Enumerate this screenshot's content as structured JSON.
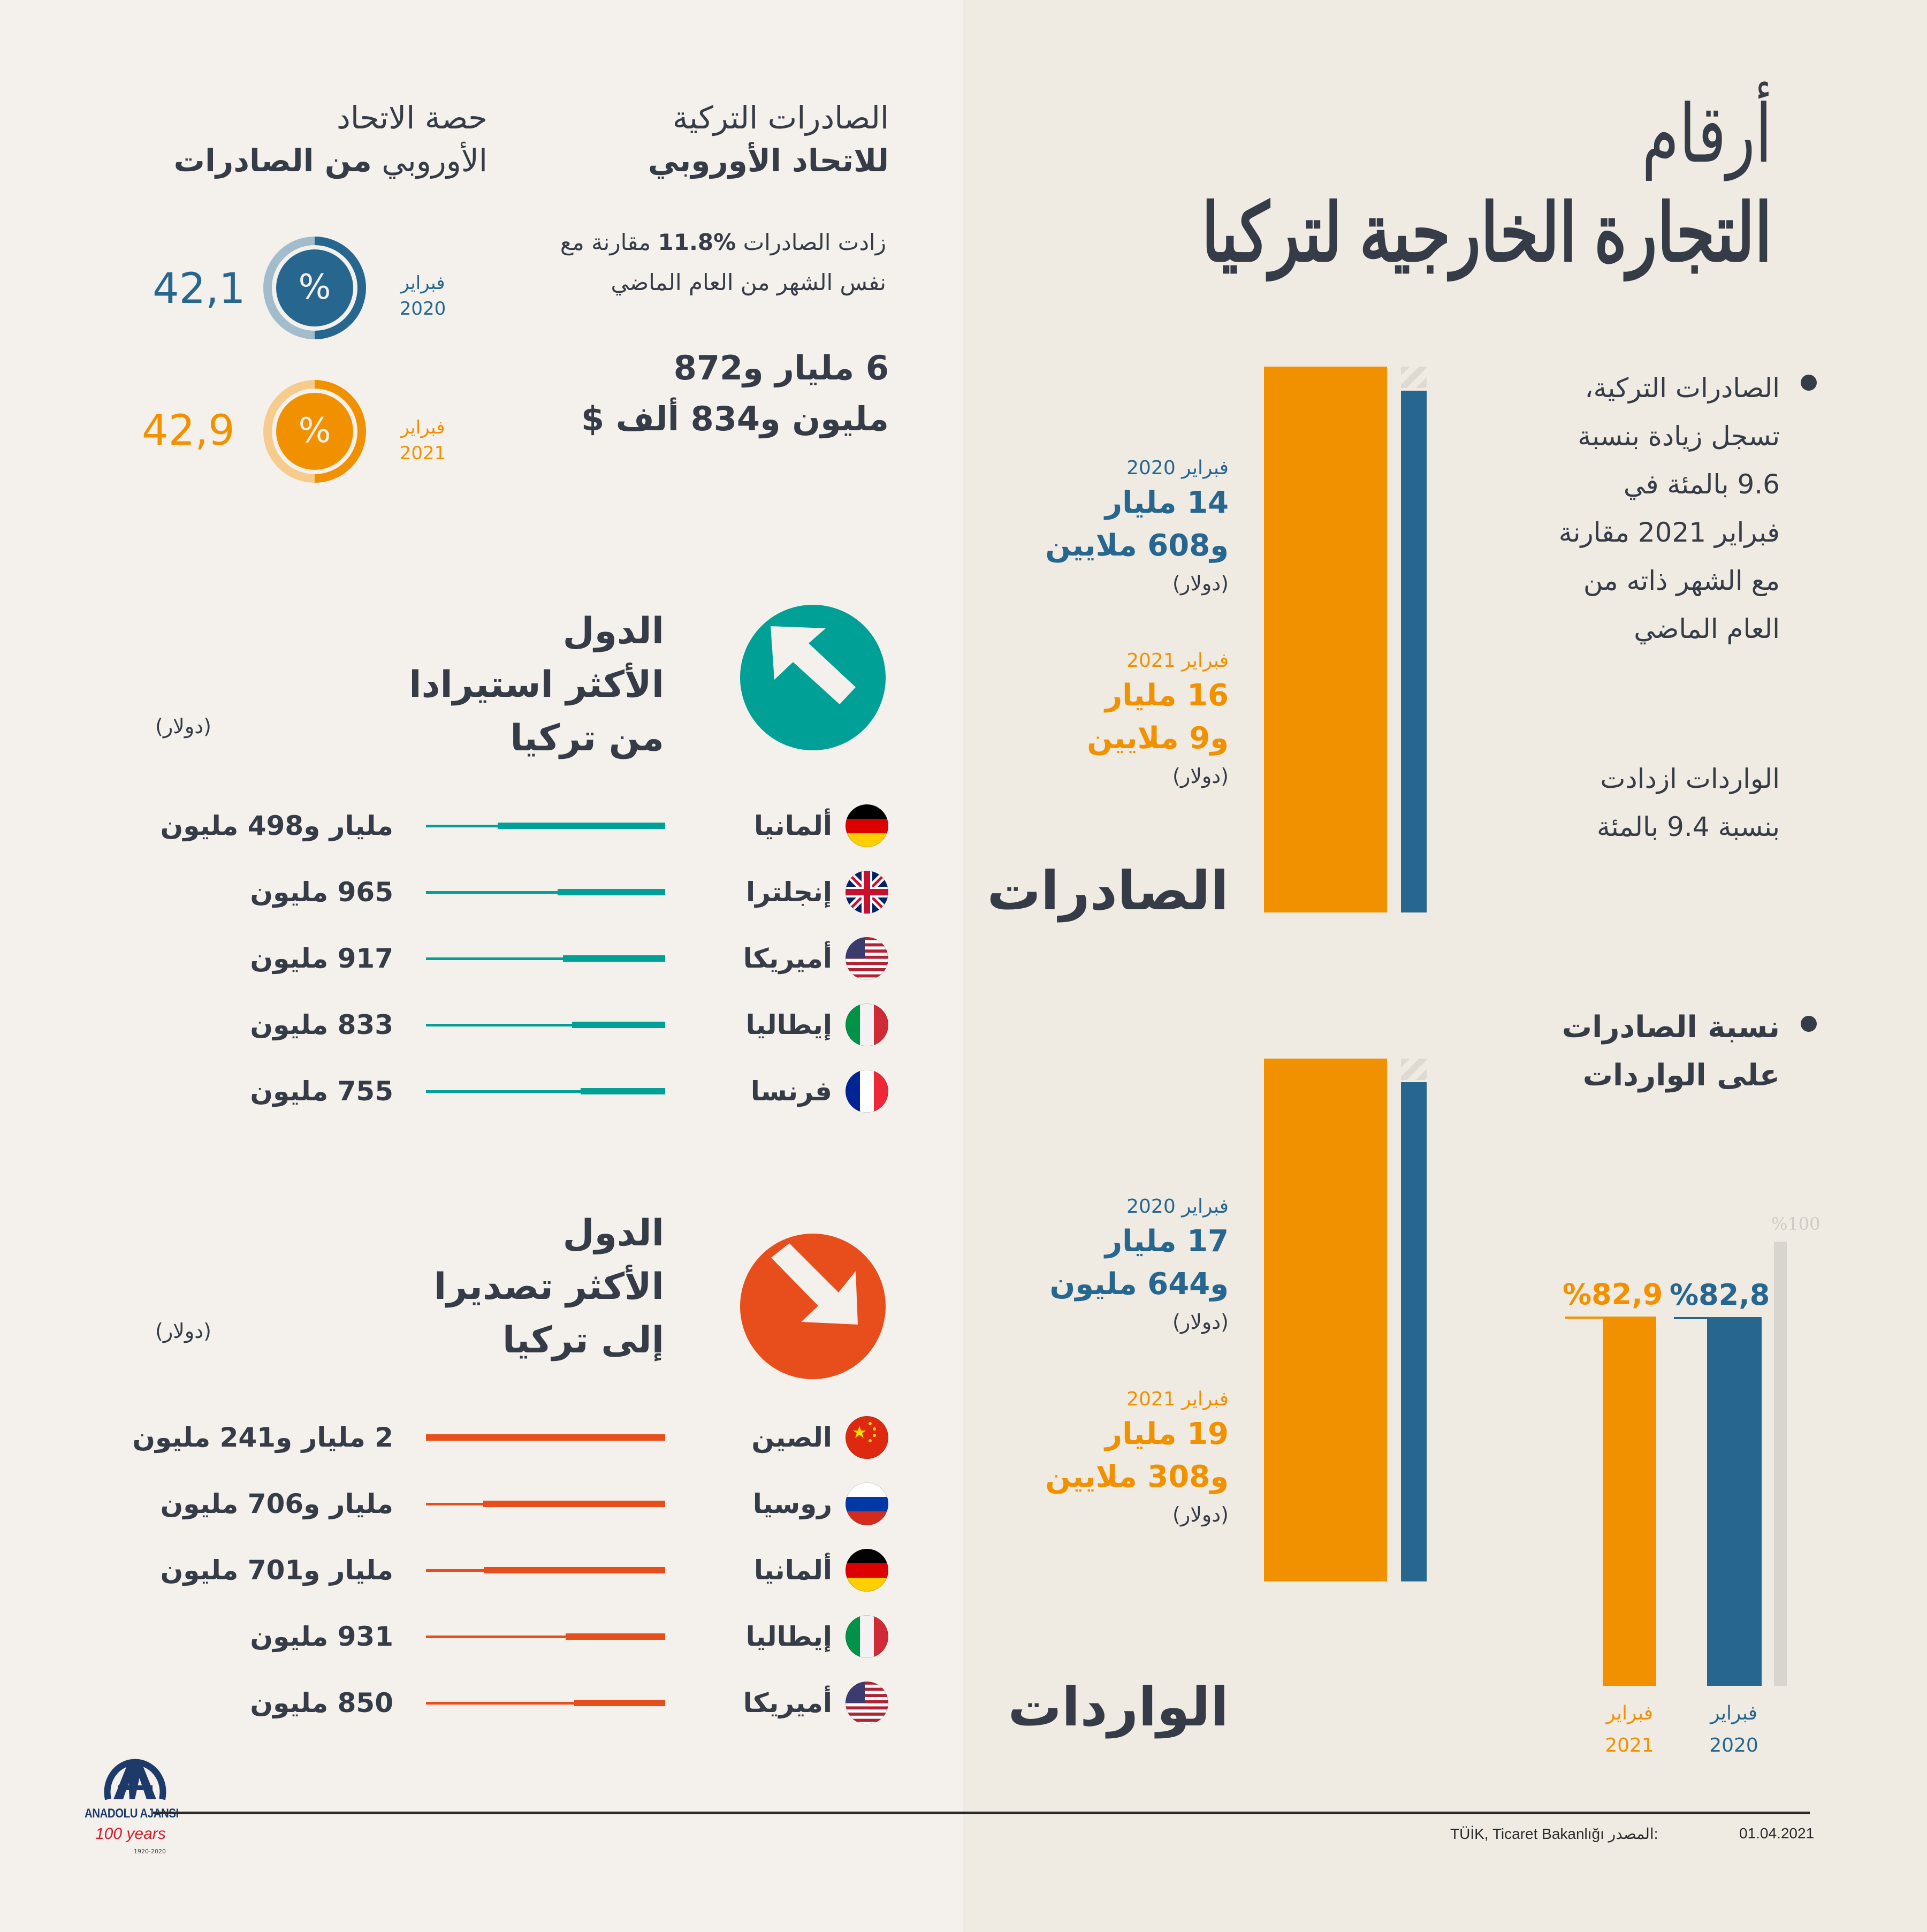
{
  "title": {
    "line1": "أرقام",
    "line2": "التجارة الخارجية لتركيا"
  },
  "colors": {
    "blue": "#26668f",
    "orange": "#f29100",
    "teal": "#00a096",
    "red_orange": "#e84e1b",
    "dark": "#363c47",
    "gray": "#d8d5cf"
  },
  "summary": {
    "exports_text": [
      "الصادرات التركية،",
      "تسجل زيادة بنسبة",
      "9.6 بالمئة في",
      "فبراير 2021 مقارنة",
      "مع الشهر ذاته من",
      "العام الماضي"
    ],
    "imports_text": [
      "الواردات ازدادت",
      "بنسبة 9.4 بالمئة"
    ]
  },
  "exports": {
    "label": "الصادرات",
    "y2020": {
      "month": "فبراير 2020",
      "line1": "14 مليار",
      "line2": "و608 ملايين",
      "unit": "(دولار)"
    },
    "y2021": {
      "month": "فبراير 2021",
      "line1": "16 مليار",
      "line2": "و9 ملايين",
      "unit": "(دولار)"
    }
  },
  "imports": {
    "label": "الواردات",
    "y2020": {
      "month": "فبراير 2020",
      "line1": "17 مليار",
      "line2": "و644 مليون",
      "unit": "(دولار)"
    },
    "y2021": {
      "month": "فبراير 2021",
      "line1": "19 مليار",
      "line2": "و308 ملايين",
      "unit": "(دولار)"
    }
  },
  "ratio": {
    "title_line1": "نسبة الصادرات",
    "title_line2": "على الواردات",
    "max_label": "%100",
    "bars": [
      {
        "label": "%82,8",
        "month": "فبراير",
        "year": "2020",
        "value": 82.8
      },
      {
        "label": "%82,9",
        "month": "فبراير",
        "year": "2021",
        "value": 82.9
      }
    ]
  },
  "eu": {
    "heading_line1": "الصادرات التركية",
    "heading_line2": "للاتحاد الأوروبي",
    "growth_line1_pre": "زادت الصادرات ",
    "growth_pct": "11.8%",
    "growth_line1_post": " مقارنة مع",
    "growth_line2": "نفس الشهر من العام الماضي",
    "amount_line1": "6 مليار و872",
    "amount_line2": "مليون و834 ألف $",
    "share_heading_line1": "حصة الاتحاد",
    "share_heading_line2_a": "الأوروبي ",
    "share_heading_line2_b": "من الصادرات",
    "share": [
      {
        "value_label": "42,1",
        "month": "فبراير",
        "year": "2020",
        "icon": "%",
        "percent": 42.1
      },
      {
        "value_label": "42,9",
        "month": "فبراير",
        "year": "2021",
        "icon": "%",
        "percent": 42.9
      }
    ]
  },
  "top_importers": {
    "title_line1": "الدول",
    "title_line2": "الأكثر استيرادا",
    "title_line3": "من تركيا",
    "unit": "(دولار)",
    "rows": [
      {
        "country": "ألمانيا",
        "flag": "germany",
        "value_label": "مليار و498 مليون",
        "value_musd": 1498
      },
      {
        "country": "إنجلترا",
        "flag": "uk",
        "value_label": "965 مليون",
        "value_musd": 965
      },
      {
        "country": "أميريكا",
        "flag": "usa",
        "value_label": "917 مليون",
        "value_musd": 917
      },
      {
        "country": "إيطاليا",
        "flag": "italy",
        "value_label": "833 مليون",
        "value_musd": 833
      },
      {
        "country": "فرنسا",
        "flag": "france",
        "value_label": "755 مليون",
        "value_musd": 755
      }
    ]
  },
  "top_exporters": {
    "title_line1": "الدول",
    "title_line2": "الأكثر تصديرا",
    "title_line3": "إلى تركيا",
    "unit": "(دولار)",
    "rows": [
      {
        "country": "الصين",
        "flag": "china",
        "value_label": "2 مليار و241 مليون",
        "value_musd": 2241
      },
      {
        "country": "روسيا",
        "flag": "russia",
        "value_label": "مليار و706 مليون",
        "value_musd": 1706
      },
      {
        "country": "ألمانيا",
        "flag": "germany",
        "value_label": "مليار و701 مليون",
        "value_musd": 1701
      },
      {
        "country": "إيطاليا",
        "flag": "italy",
        "value_label": "931 مليون",
        "value_musd": 931
      },
      {
        "country": "أميريكا",
        "flag": "usa",
        "value_label": "850 مليون",
        "value_musd": 850
      }
    ]
  },
  "footer": {
    "logo_text": "ANADOLU AJANSI",
    "anniversary": "100 years",
    "anniversary_range": "1920-2020",
    "source_label": "المصدر:",
    "source": "TÜİK, Ticaret Bakanlığı",
    "date": "01.04.2021"
  }
}
